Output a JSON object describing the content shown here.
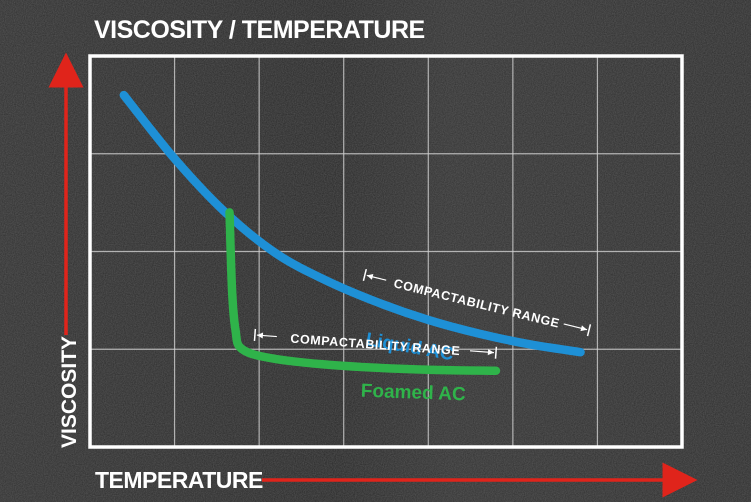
{
  "chart_data": {
    "type": "line",
    "title": "VISCOSITY / TEMPERATURE",
    "xlabel": "TEMPERATURE",
    "ylabel": "VISCOSITY",
    "grid": true,
    "xlim": [
      0,
      7
    ],
    "ylim": [
      0,
      4
    ],
    "series": [
      {
        "name": "Liquid AC",
        "color": "#1e90d6",
        "points": [
          [
            0.4,
            3.6
          ],
          [
            1.0,
            2.95
          ],
          [
            1.6,
            2.4
          ],
          [
            2.2,
            1.98
          ],
          [
            2.8,
            1.7
          ],
          [
            3.4,
            1.48
          ],
          [
            4.0,
            1.3
          ],
          [
            4.6,
            1.16
          ],
          [
            5.2,
            1.05
          ],
          [
            5.8,
            0.97
          ]
        ]
      },
      {
        "name": "Foamed AC",
        "color": "#2fb34a",
        "points": [
          [
            1.65,
            2.4
          ],
          [
            1.68,
            1.6
          ],
          [
            1.72,
            1.2
          ],
          [
            1.8,
            1.0
          ],
          [
            2.2,
            0.9
          ],
          [
            3.0,
            0.83
          ],
          [
            4.0,
            0.79
          ],
          [
            4.8,
            0.78
          ]
        ]
      }
    ],
    "annotations": [
      {
        "text": "COMPACTABILITY RANGE",
        "series": "Liquid AC",
        "x_start": 3.25,
        "x_end": 5.9
      },
      {
        "text": "COMPACTABILITY RANGE",
        "series": "Foamed AC",
        "x_start": 1.95,
        "x_end": 4.8
      }
    ]
  }
}
